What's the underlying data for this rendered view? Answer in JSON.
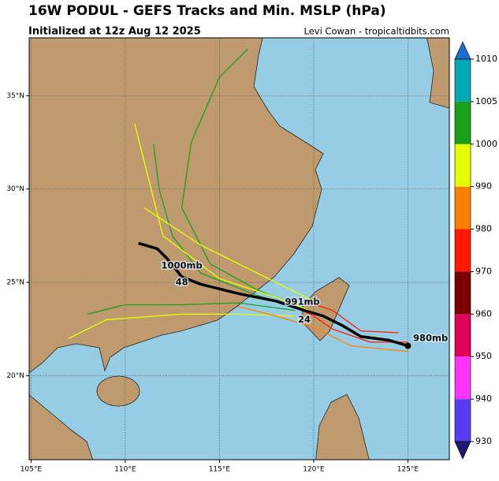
{
  "chart_data": {
    "type": "track-map",
    "title": "16W PODUL - GEFS Tracks and Min. MSLP (hPa)",
    "subtitle": "Initialized at 12z Aug 12 2025",
    "credit": "Levi Cowan - tropicaltidbits.com",
    "xlim": [
      104.9,
      127.2
    ],
    "ylim": [
      15.5,
      38.1
    ],
    "xticks": [
      {
        "value": 105,
        "label": "105°E"
      },
      {
        "value": 110,
        "label": "110°E"
      },
      {
        "value": 115,
        "label": "115°E"
      },
      {
        "value": 120,
        "label": "120°E"
      },
      {
        "value": 125,
        "label": "125°E"
      }
    ],
    "yticks": [
      {
        "value": 20,
        "label": "20°N"
      },
      {
        "value": 25,
        "label": "25°N"
      },
      {
        "value": 30,
        "label": "30°N"
      },
      {
        "value": 35,
        "label": "35°N"
      }
    ],
    "grid": true,
    "colorbar": {
      "levels": [
        930,
        940,
        950,
        960,
        970,
        980,
        990,
        1000,
        1005,
        1010
      ],
      "colors": [
        "#5a3cf0",
        "#ff33ff",
        "#e0005a",
        "#780000",
        "#ff1a00",
        "#ff7f00",
        "#e6ff00",
        "#1aa01a",
        "#00a8b8"
      ],
      "low_color": "#1a1a6e",
      "high_color": "#1a6fd0"
    },
    "members": [
      {
        "color": "#1aa01a",
        "lon": [
          120,
          117,
          114,
          112.5,
          111.8,
          111.5
        ],
        "lat": [
          23.4,
          24.3,
          25.5,
          27.5,
          30,
          32.4
        ]
      },
      {
        "color": "#1aa01a",
        "lon": [
          120,
          117,
          114.5,
          113,
          113.5,
          115,
          116.5
        ],
        "lat": [
          23.4,
          24.6,
          26,
          29,
          32.5,
          36,
          37.5
        ]
      },
      {
        "color": "#e6ff00",
        "lon": [
          121,
          118,
          115,
          112,
          110.5
        ],
        "lat": [
          23.0,
          24.2,
          25.2,
          27.5,
          33.5
        ]
      },
      {
        "color": "#1aa01a",
        "lon": [
          119,
          116,
          113,
          110,
          108
        ],
        "lat": [
          23.5,
          23.9,
          23.8,
          23.8,
          23.3
        ]
      },
      {
        "color": "#e6ff00",
        "lon": [
          119,
          116,
          113,
          109,
          107
        ],
        "lat": [
          23.2,
          23.3,
          23.3,
          23.0,
          22.0
        ]
      },
      {
        "color": "#e6ff00",
        "lon": [
          120,
          117,
          114,
          111
        ],
        "lat": [
          24,
          25.5,
          27,
          29
        ]
      },
      {
        "color": "#ff7f00",
        "lon": [
          125,
          122,
          120,
          118,
          116
        ],
        "lat": [
          21.3,
          21.6,
          22.6,
          23.2,
          23.7
        ]
      },
      {
        "color": "#ff1a00",
        "lon": [
          125,
          123,
          121,
          120,
          119
        ],
        "lat": [
          21.8,
          21.8,
          22.5,
          23.2,
          23.7
        ]
      },
      {
        "color": "#ff1a00",
        "lon": [
          124.5,
          122.5,
          121,
          119.5
        ],
        "lat": [
          22.3,
          22.4,
          23.5,
          24.0
        ]
      }
    ],
    "mean_track": {
      "color": "#000000",
      "lon": [
        125.0,
        124,
        122.5,
        121.5,
        120.5,
        119.5,
        118,
        116,
        114,
        113,
        112.2,
        111.7,
        110.7
      ],
      "lat": [
        21.6,
        21.9,
        22.1,
        22.7,
        23.2,
        23.5,
        24.0,
        24.4,
        24.9,
        25.3,
        26.3,
        26.8,
        27.1
      ]
    },
    "annotations": [
      {
        "text": "980mb",
        "lon": 126.2,
        "lat": 22.0
      },
      {
        "text": "991mb",
        "lon": 119.4,
        "lat": 23.95
      },
      {
        "text": "24",
        "lon": 119.5,
        "lat": 23.0
      },
      {
        "text": "1000mb",
        "lon": 113.0,
        "lat": 25.9
      },
      {
        "text": "48",
        "lon": 113.0,
        "lat": 25.0
      }
    ]
  }
}
